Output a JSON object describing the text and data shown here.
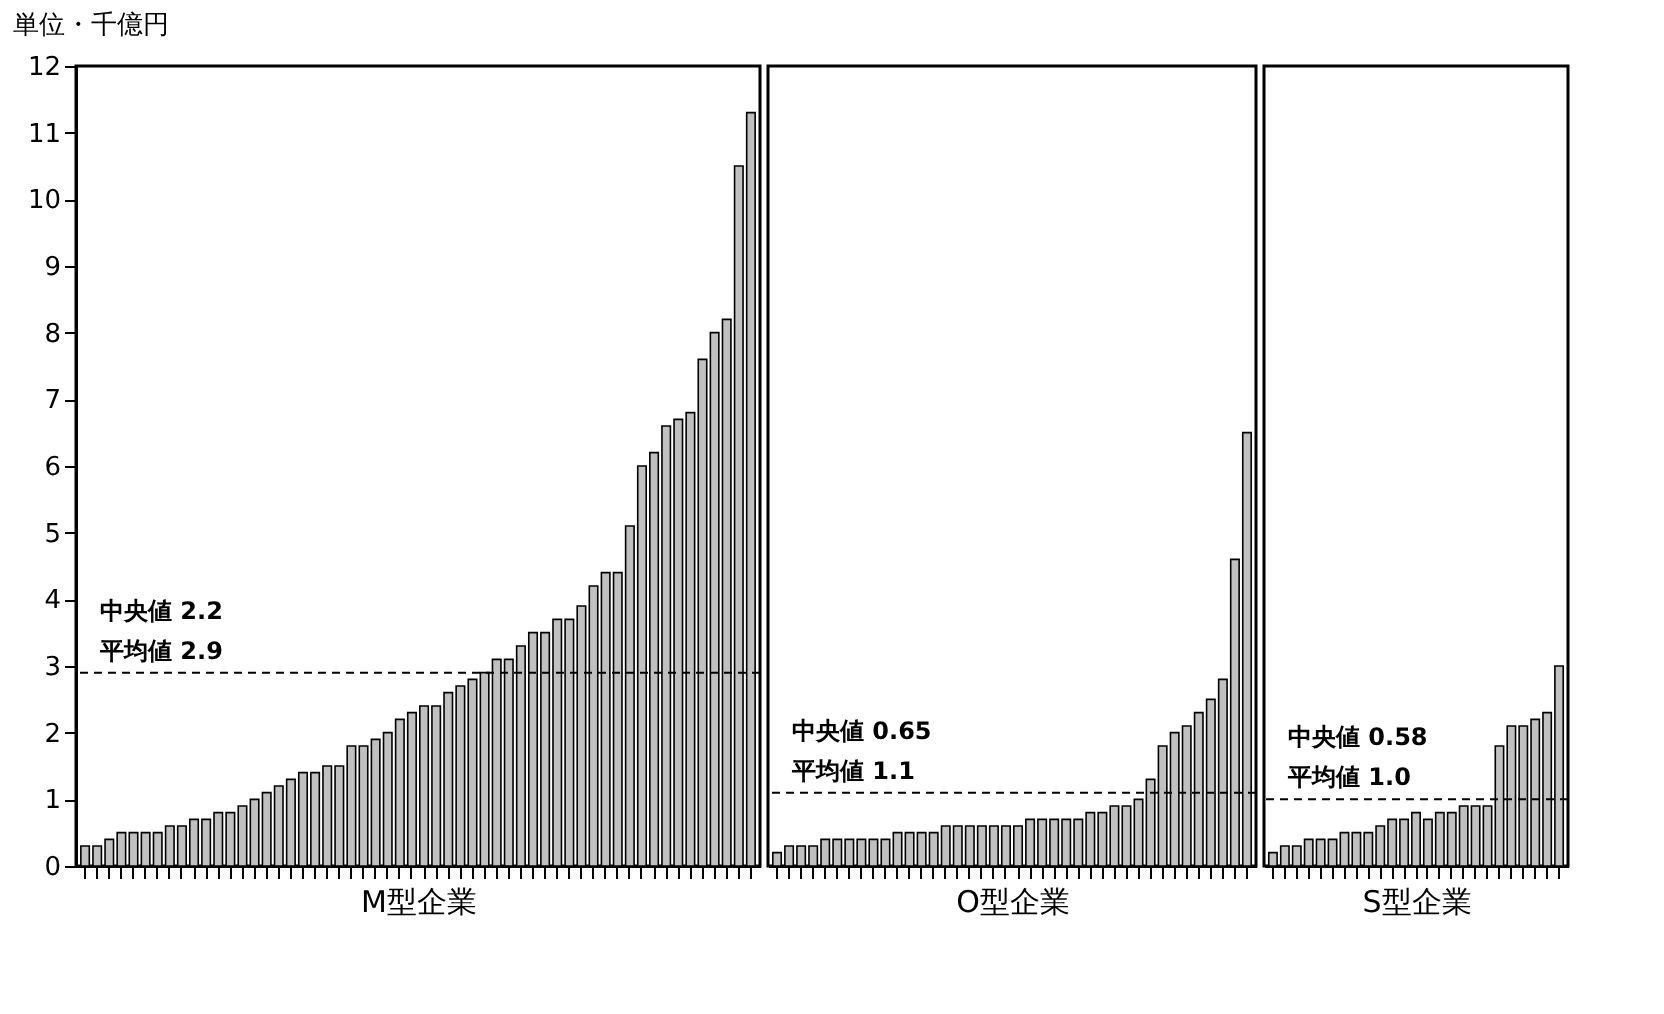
{
  "chart_data": [
    {
      "type": "bar",
      "xlabel": "M型企業",
      "ylabel": "単位・千億円",
      "categories": [
        null,
        null,
        null,
        null,
        null,
        null,
        null,
        null,
        null,
        null,
        null,
        null,
        null,
        null,
        null,
        null,
        null,
        null,
        null,
        null,
        null,
        null,
        null,
        null,
        null,
        null,
        null,
        null,
        null,
        null,
        null,
        null,
        null,
        null,
        null,
        null,
        null,
        null,
        null,
        null,
        null,
        null,
        null,
        null,
        null,
        null,
        null,
        null,
        null,
        null,
        null,
        null,
        null,
        null,
        null,
        null
      ],
      "values": [
        0.3,
        0.3,
        0.4,
        0.5,
        0.5,
        0.5,
        0.5,
        0.6,
        0.6,
        0.7,
        0.7,
        0.8,
        0.8,
        0.9,
        1.0,
        1.1,
        1.2,
        1.3,
        1.4,
        1.4,
        1.5,
        1.5,
        1.8,
        1.8,
        1.9,
        2.0,
        2.2,
        2.3,
        2.4,
        2.4,
        2.6,
        2.7,
        2.8,
        2.9,
        3.1,
        3.1,
        3.3,
        3.5,
        3.5,
        3.7,
        3.7,
        3.9,
        4.2,
        4.4,
        4.4,
        5.1,
        6.0,
        6.2,
        6.6,
        6.7,
        6.8,
        7.6,
        8.0,
        8.2,
        10.5,
        11.3
      ],
      "color": "#c0c0c0",
      "ylim": [
        0,
        12
      ],
      "yticks": [
        0,
        1,
        2,
        3,
        4,
        5,
        6,
        7,
        8,
        9,
        10,
        11,
        12
      ],
      "tick_labels": "y",
      "ref_lines": [
        {
          "axis": "y",
          "value": 2.9,
          "label": "平均値 2.9",
          "line_style": "dashed"
        }
      ],
      "annotations": [
        "中央値 2.2"
      ]
    },
    {
      "type": "bar",
      "xlabel": "O型企業",
      "categories": [
        null,
        null,
        null,
        null,
        null,
        null,
        null,
        null,
        null,
        null,
        null,
        null,
        null,
        null,
        null,
        null,
        null,
        null,
        null,
        null,
        null,
        null,
        null,
        null,
        null,
        null,
        null,
        null,
        null,
        null,
        null,
        null,
        null,
        null,
        null,
        null,
        null,
        null,
        null,
        null
      ],
      "values": [
        0.2,
        0.3,
        0.3,
        0.3,
        0.4,
        0.4,
        0.4,
        0.4,
        0.4,
        0.4,
        0.5,
        0.5,
        0.5,
        0.5,
        0.6,
        0.6,
        0.6,
        0.6,
        0.6,
        0.6,
        0.6,
        0.7,
        0.7,
        0.7,
        0.7,
        0.7,
        0.8,
        0.8,
        0.9,
        0.9,
        1.0,
        1.3,
        1.8,
        2.0,
        2.1,
        2.3,
        2.5,
        2.8,
        4.6,
        6.5
      ],
      "color": "#c0c0c0",
      "ylim": [
        0,
        12
      ],
      "tick_labels": false,
      "ref_lines": [
        {
          "axis": "y",
          "value": 1.1,
          "label": "平均値 1.1",
          "line_style": "dashed"
        }
      ],
      "annotations": [
        "中央値 0.65"
      ]
    },
    {
      "type": "bar",
      "xlabel": "S型企業",
      "categories": [
        null,
        null,
        null,
        null,
        null,
        null,
        null,
        null,
        null,
        null,
        null,
        null,
        null,
        null,
        null,
        null,
        null,
        null,
        null,
        null,
        null,
        null,
        null,
        null,
        null
      ],
      "values": [
        0.2,
        0.3,
        0.3,
        0.4,
        0.4,
        0.4,
        0.5,
        0.5,
        0.5,
        0.6,
        0.7,
        0.7,
        0.8,
        0.7,
        0.8,
        0.8,
        0.9,
        0.9,
        0.9,
        1.8,
        2.1,
        2.1,
        2.2,
        2.3,
        3.0
      ],
      "color": "#c0c0c0",
      "ylim": [
        0,
        12
      ],
      "tick_labels": false,
      "ref_lines": [
        {
          "axis": "y",
          "value": 1.0,
          "label": "平均値 1.0",
          "line_style": "dashed"
        }
      ],
      "annotations": [
        "中央値 0.58"
      ]
    }
  ]
}
